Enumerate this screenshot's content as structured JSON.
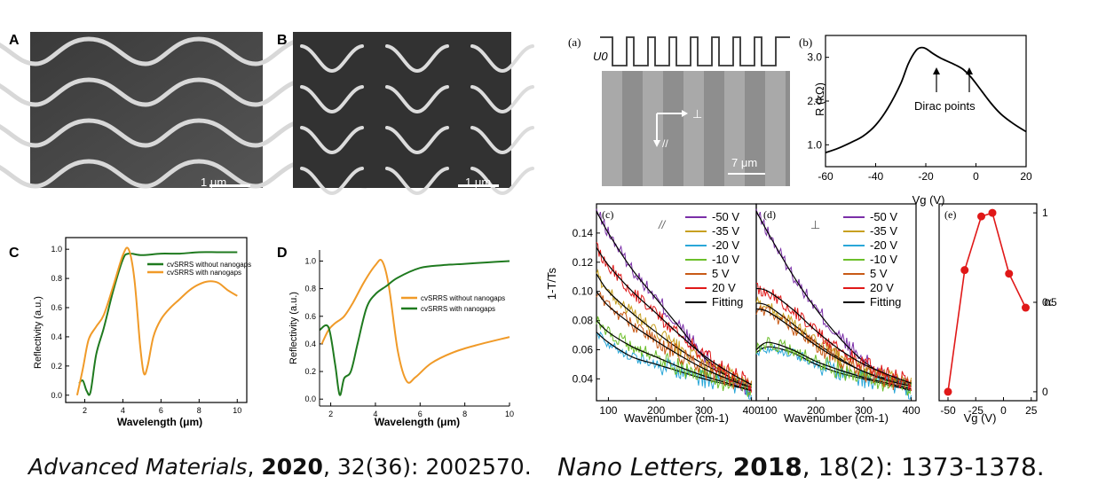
{
  "left_figure": {
    "panel_A": {
      "label": "A",
      "scale_bar": "1 μm"
    },
    "panel_B": {
      "label": "B",
      "scale_bar": "1 μm"
    },
    "panel_C": {
      "label": "C",
      "xlabel": "Wavelength (μm)",
      "ylabel": "Reflectivity (a.u.)",
      "legend": [
        "cvSRRS without nanogaps",
        "cvSRRS with nanogaps"
      ],
      "colors": {
        "without": "#1f7a1f",
        "with": "#f09a28"
      }
    },
    "panel_D": {
      "label": "D",
      "xlabel": "Wavelength (μm)",
      "ylabel": "Reflectivity (a.u.)",
      "legend": [
        "cvSRRS without nanogaps",
        "cvSRRS with nanogaps"
      ],
      "colors": {
        "without": "#f09a28",
        "with": "#1f7a1f"
      }
    }
  },
  "right_figure": {
    "panel_a": {
      "label": "(a)",
      "voltage_label": "U0",
      "axis_perp": "⊥",
      "axis_par": "//",
      "scale_bar": "7 μm"
    },
    "panel_b": {
      "label": "(b)",
      "annotation": "Dirac points",
      "xlabel": "Vg (V)",
      "ylabel": "R (kΩ)"
    },
    "panel_c": {
      "label": "(c)",
      "polarization": "//",
      "ylabel": "1-T/Ts",
      "xlabel": "Wavenumber (cm-1)"
    },
    "panel_d": {
      "label": "(d)",
      "polarization": "⊥",
      "xlabel": "Wavenumber (cm-1)"
    },
    "panel_e": {
      "label": "(e)",
      "ylabel": "α",
      "xlabel": "Vg (V)"
    },
    "legend": [
      {
        "label": "-50 V",
        "color": "#7b2fa8"
      },
      {
        "label": "-35 V",
        "color": "#c8a020"
      },
      {
        "label": "-20 V",
        "color": "#2aa7d8"
      },
      {
        "label": "-10 V",
        "color": "#6cbf2a"
      },
      {
        "label": "5 V",
        "color": "#c85a16"
      },
      {
        "label": "20 V",
        "color": "#e01818"
      },
      {
        "label": "Fitting",
        "color": "#000000"
      }
    ]
  },
  "captions": {
    "left": {
      "journal": "Advanced Materials",
      "year": "2020",
      "rest": ", 32(36): 2002570."
    },
    "right": {
      "journal": "Nano Letters,",
      "year": "2018",
      "rest": ", 18(2): 1373-1378."
    }
  },
  "chart_data": [
    {
      "type": "line",
      "panel": "C",
      "title": "",
      "xlabel": "Wavelength (μm)",
      "ylabel": "Reflectivity (a.u.)",
      "xlim": [
        1,
        10.5
      ],
      "ylim": [
        -0.05,
        1.08
      ],
      "xticks": [
        2,
        4,
        6,
        8,
        10
      ],
      "yticks": [
        0.0,
        0.2,
        0.4,
        0.6,
        0.8,
        1.0
      ],
      "legend": "top-right",
      "series": [
        {
          "name": "cvSRRS without nanogaps",
          "color": "#1f7a1f",
          "x": [
            1.7,
            1.9,
            2.1,
            2.3,
            2.6,
            3.0,
            3.5,
            4.0,
            4.3,
            5,
            6,
            7,
            8,
            9,
            10
          ],
          "y": [
            0.08,
            0.1,
            0.03,
            0.02,
            0.28,
            0.46,
            0.72,
            0.93,
            0.97,
            0.96,
            0.97,
            0.97,
            0.98,
            0.98,
            0.98
          ]
        },
        {
          "name": "cvSRRS with nanogaps",
          "color": "#f09a28",
          "x": [
            1.6,
            1.9,
            2.2,
            2.6,
            3.0,
            3.5,
            4.0,
            4.3,
            4.6,
            4.9,
            5.1,
            5.3,
            5.6,
            6.0,
            6.5,
            7.0,
            7.5,
            8.0,
            8.5,
            9.0,
            9.5,
            10
          ],
          "y": [
            0.0,
            0.18,
            0.38,
            0.47,
            0.55,
            0.75,
            0.96,
            1.0,
            0.8,
            0.35,
            0.15,
            0.2,
            0.4,
            0.52,
            0.6,
            0.66,
            0.72,
            0.76,
            0.78,
            0.77,
            0.72,
            0.68
          ]
        }
      ]
    },
    {
      "type": "line",
      "panel": "D",
      "title": "",
      "xlabel": "Wavelength (μm)",
      "ylabel": "Reflectivity (a.u.)",
      "xlim": [
        1.5,
        10
      ],
      "ylim": [
        -0.05,
        1.08
      ],
      "xticks": [
        2,
        4,
        6,
        8,
        10
      ],
      "yticks": [
        0.0,
        0.2,
        0.4,
        0.6,
        0.8,
        1.0
      ],
      "legend": "center-right",
      "series": [
        {
          "name": "cvSRRS without nanogaps",
          "color": "#f09a28",
          "x": [
            1.6,
            1.9,
            2.2,
            2.6,
            3.0,
            3.5,
            4.0,
            4.3,
            4.6,
            5.0,
            5.4,
            5.8,
            6.5,
            7.5,
            8.5,
            10
          ],
          "y": [
            0.4,
            0.5,
            0.55,
            0.6,
            0.7,
            0.85,
            0.97,
            1.0,
            0.82,
            0.35,
            0.13,
            0.16,
            0.26,
            0.34,
            0.39,
            0.45
          ]
        },
        {
          "name": "cvSRRS with nanogaps",
          "color": "#1f7a1f",
          "x": [
            1.5,
            1.9,
            2.2,
            2.4,
            2.6,
            2.9,
            3.2,
            3.6,
            4.0,
            4.5,
            5.0,
            6.0,
            7.0,
            8.0,
            9.0,
            10
          ],
          "y": [
            0.5,
            0.52,
            0.25,
            0.03,
            0.15,
            0.2,
            0.4,
            0.66,
            0.76,
            0.82,
            0.88,
            0.95,
            0.97,
            0.98,
            0.99,
            1.0
          ]
        }
      ]
    },
    {
      "type": "line",
      "panel": "(b)",
      "title": "",
      "xlabel": "Vg (V)",
      "ylabel": "R (kΩ)",
      "xlim": [
        -60,
        20
      ],
      "ylim": [
        0.5,
        3.5
      ],
      "xticks": [
        -60,
        -40,
        -20,
        0,
        20
      ],
      "yticks": [
        1.0,
        2.0,
        3.0
      ],
      "series": [
        {
          "name": "R",
          "x": [
            -60,
            -55,
            -50,
            -45,
            -40,
            -35,
            -30,
            -27,
            -24,
            -22,
            -20,
            -17,
            -14,
            -11,
            -8,
            -5,
            -2,
            2,
            6,
            10,
            15,
            20
          ],
          "y": [
            0.82,
            0.92,
            1.05,
            1.2,
            1.45,
            1.85,
            2.4,
            2.85,
            3.15,
            3.22,
            3.2,
            3.08,
            2.98,
            2.9,
            2.82,
            2.72,
            2.55,
            2.25,
            1.95,
            1.7,
            1.48,
            1.3
          ]
        }
      ],
      "annotations": [
        "Dirac points"
      ]
    },
    {
      "type": "line",
      "panel": "(c)",
      "xlabel": "Wavenumber (cm-1)",
      "ylabel": "1-T/Ts",
      "xlim": [
        75,
        410
      ],
      "ylim": [
        0.025,
        0.16
      ],
      "xticks": [
        100,
        200,
        300,
        400
      ],
      "yticks": [
        0.04,
        0.06,
        0.08,
        0.1,
        0.12,
        0.14
      ],
      "series": [
        {
          "name": "-50 V",
          "color": "#7b2fa8",
          "x": [
            75,
            100,
            150,
            200,
            250,
            300,
            350,
            400
          ],
          "y": [
            0.155,
            0.14,
            0.115,
            0.095,
            0.075,
            0.055,
            0.042,
            0.032
          ]
        },
        {
          "name": "-35 V",
          "color": "#c8a020",
          "x": [
            75,
            100,
            150,
            200,
            250,
            300,
            350,
            400
          ],
          "y": [
            0.112,
            0.1,
            0.085,
            0.072,
            0.06,
            0.05,
            0.042,
            0.034
          ]
        },
        {
          "name": "-20 V",
          "color": "#2aa7d8",
          "x": [
            75,
            100,
            150,
            200,
            250,
            300,
            350,
            400
          ],
          "y": [
            0.072,
            0.065,
            0.055,
            0.05,
            0.045,
            0.04,
            0.036,
            0.032
          ]
        },
        {
          "name": "-10 V",
          "color": "#6cbf2a",
          "x": [
            75,
            100,
            150,
            200,
            250,
            300,
            350,
            400
          ],
          "y": [
            0.08,
            0.072,
            0.062,
            0.055,
            0.048,
            0.042,
            0.037,
            0.032
          ]
        },
        {
          "name": "5 V",
          "color": "#c85a16",
          "x": [
            75,
            100,
            150,
            200,
            250,
            300,
            350,
            400
          ],
          "y": [
            0.1,
            0.09,
            0.077,
            0.066,
            0.056,
            0.047,
            0.04,
            0.034
          ]
        },
        {
          "name": "20 V",
          "color": "#e01818",
          "x": [
            75,
            100,
            150,
            200,
            250,
            300,
            350,
            400
          ],
          "y": [
            0.13,
            0.118,
            0.1,
            0.085,
            0.07,
            0.056,
            0.045,
            0.036
          ]
        }
      ]
    },
    {
      "type": "line",
      "panel": "(d)",
      "xlabel": "Wavenumber (cm-1)",
      "xlim": [
        75,
        410
      ],
      "ylim": [
        0.025,
        0.16
      ],
      "xticks": [
        100,
        200,
        300,
        400
      ],
      "series": [
        {
          "name": "-50 V",
          "color": "#7b2fa8",
          "x": [
            75,
            100,
            150,
            200,
            250,
            300,
            350,
            400
          ],
          "y": [
            0.155,
            0.14,
            0.112,
            0.088,
            0.068,
            0.052,
            0.042,
            0.036
          ]
        },
        {
          "name": "-35 V",
          "color": "#c8a020",
          "x": [
            75,
            100,
            150,
            200,
            250,
            300,
            350,
            400
          ],
          "y": [
            0.092,
            0.09,
            0.078,
            0.065,
            0.054,
            0.045,
            0.04,
            0.036
          ]
        },
        {
          "name": "-20 V",
          "color": "#2aa7d8",
          "x": [
            75,
            100,
            150,
            200,
            250,
            300,
            350,
            400
          ],
          "y": [
            0.058,
            0.062,
            0.058,
            0.05,
            0.044,
            0.04,
            0.036,
            0.032
          ]
        },
        {
          "name": "-10 V",
          "color": "#6cbf2a",
          "x": [
            75,
            100,
            150,
            200,
            250,
            300,
            350,
            400
          ],
          "y": [
            0.06,
            0.065,
            0.06,
            0.052,
            0.046,
            0.041,
            0.037,
            0.033
          ]
        },
        {
          "name": "5 V",
          "color": "#c85a16",
          "x": [
            75,
            100,
            150,
            200,
            250,
            300,
            350,
            400
          ],
          "y": [
            0.088,
            0.086,
            0.075,
            0.063,
            0.053,
            0.045,
            0.039,
            0.035
          ]
        },
        {
          "name": "20 V",
          "color": "#e01818",
          "x": [
            75,
            100,
            150,
            200,
            250,
            300,
            350,
            400
          ],
          "y": [
            0.102,
            0.1,
            0.088,
            0.073,
            0.06,
            0.05,
            0.043,
            0.037
          ]
        }
      ]
    },
    {
      "type": "scatter",
      "panel": "(e)",
      "xlabel": "Vg (V)",
      "ylabel": "α",
      "xlim": [
        -58,
        30
      ],
      "ylim": [
        -0.05,
        1.05
      ],
      "xticks": [
        -50,
        -25,
        0,
        25
      ],
      "yticks": [
        0,
        0.5,
        1
      ],
      "series": [
        {
          "name": "α",
          "color": "#e01818",
          "x": [
            -50,
            -35,
            -20,
            -10,
            5,
            20
          ],
          "y": [
            0.0,
            0.68,
            0.98,
            1.0,
            0.66,
            0.47
          ]
        }
      ]
    }
  ]
}
